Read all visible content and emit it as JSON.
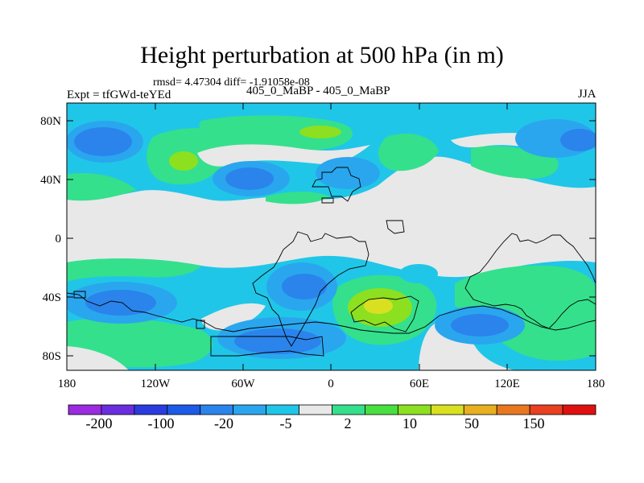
{
  "title": "Height perturbation at 500 hPa (in m)",
  "stats": "rmsd= 4.47304 diff= -1.91058e-08",
  "experiment": "Expt = tfGWd-teYEd",
  "subtitle": "405_0_MaBP - 405_0_MaBP",
  "season": "JJA",
  "y_ticks": [
    "80N",
    "40N",
    "0",
    "40S",
    "80S"
  ],
  "x_ticks": [
    "180",
    "120W",
    "60W",
    "0",
    "60E",
    "120E",
    "180"
  ],
  "colorbar": {
    "labels": [
      "-200",
      "-100",
      "-20",
      "-5",
      "2",
      "10",
      "50",
      "150"
    ],
    "colors": [
      "#9a2be0",
      "#6a2ee0",
      "#2a3ce0",
      "#1c5ae8",
      "#2a84ec",
      "#2aa6ee",
      "#20c6e8",
      "#e8e8e8",
      "#34e08c",
      "#48e040",
      "#8ce020",
      "#d8e020",
      "#e8b020",
      "#e87820",
      "#e84020",
      "#e01010"
    ]
  },
  "palette": {
    "neutral": "#e8e8e8",
    "light_blue": "#20c6e8",
    "blue": "#2aa6ee",
    "mid_blue": "#2a84ec",
    "dark_blue": "#1c5ae8",
    "green": "#34e08c",
    "lime": "#8ce020",
    "yellow_green": "#d8e020",
    "coast": "#000000"
  }
}
